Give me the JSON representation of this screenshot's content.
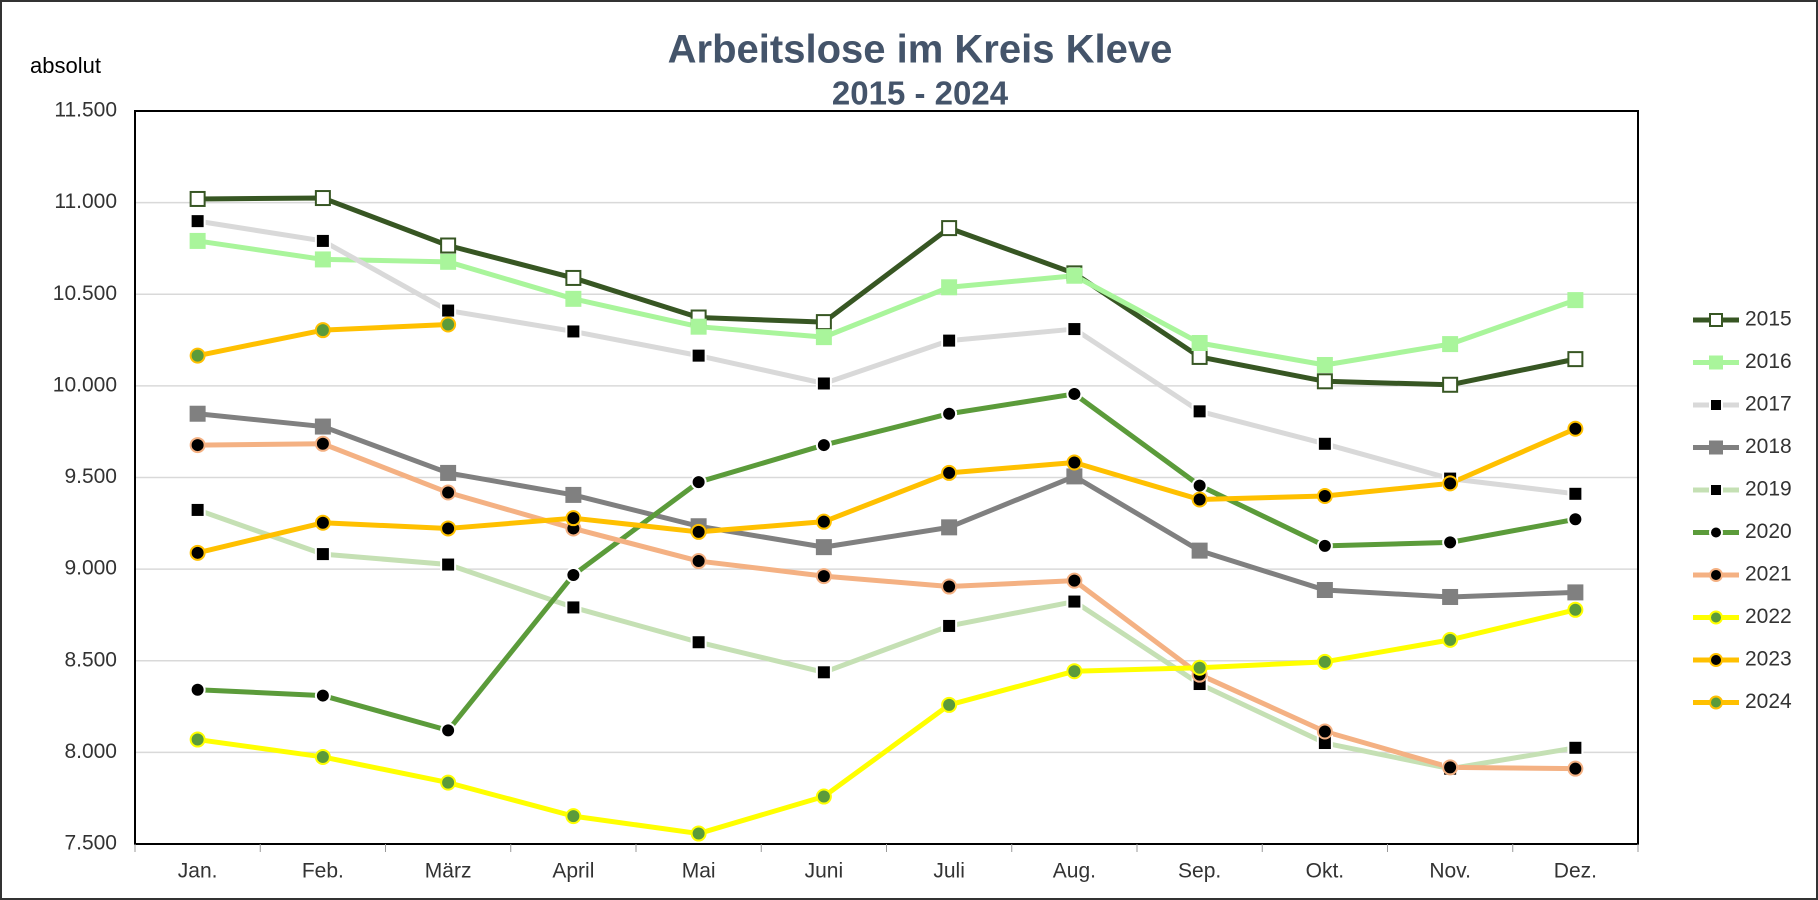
{
  "chart_data": {
    "type": "line",
    "title": "Arbeitslose im Kreis Kleve",
    "subtitle": "2015 - 2024",
    "y_label": "absolut",
    "categories": [
      "Jan.",
      "Feb.",
      "März",
      "April",
      "Mai",
      "Juni",
      "Juli",
      "Aug.",
      "Sep.",
      "Okt.",
      "Nov.",
      "Dez."
    ],
    "ylim": [
      7500,
      11500
    ],
    "yticks": [
      {
        "value": 7500,
        "label": "7.500"
      },
      {
        "value": 8000,
        "label": "8.000"
      },
      {
        "value": 8500,
        "label": "8.500"
      },
      {
        "value": 9000,
        "label": "9.000"
      },
      {
        "value": 9500,
        "label": "9.500"
      },
      {
        "value": 10000,
        "label": "10.000"
      },
      {
        "value": 10500,
        "label": "10.500"
      },
      {
        "value": 11000,
        "label": "11.000"
      },
      {
        "value": 11500,
        "label": "11.500"
      }
    ],
    "grid": true,
    "legend": "right",
    "series": [
      {
        "name": "2015",
        "color": "#375623",
        "marker": "square",
        "marker_fill": "#ffffff",
        "marker_stroke": "#375623",
        "values": [
          11020,
          11025,
          10766,
          10589,
          10373,
          10348,
          10861,
          10614,
          10158,
          10025,
          10006,
          10146
        ]
      },
      {
        "name": "2016",
        "color": "#a9f59b",
        "marker": "square",
        "marker_fill": "#a9f59b",
        "marker_stroke": "#a9f59b",
        "values": [
          10791,
          10690,
          10677,
          10475,
          10323,
          10266,
          10538,
          10601,
          10234,
          10114,
          10228,
          10468
        ]
      },
      {
        "name": "2017",
        "color": "#d9d9d9",
        "marker": "square",
        "marker_fill": "#000000",
        "marker_stroke": "#ffffff",
        "values": [
          10899,
          10791,
          10411,
          10297,
          10165,
          10013,
          10247,
          10310,
          9861,
          9684,
          9494,
          9411
        ]
      },
      {
        "name": "2018",
        "color": "#808080",
        "marker": "square",
        "marker_fill": "#808080",
        "marker_stroke": "#808080",
        "values": [
          9848,
          9778,
          9525,
          9405,
          9234,
          9120,
          9228,
          9506,
          9101,
          8886,
          8848,
          8873
        ]
      },
      {
        "name": "2019",
        "color": "#c5e0b4",
        "marker": "square",
        "marker_fill": "#000000",
        "marker_stroke": "#ffffff",
        "values": [
          9323,
          9082,
          9025,
          8791,
          8601,
          8437,
          8690,
          8823,
          8373,
          8051,
          7911,
          8025
        ]
      },
      {
        "name": "2020",
        "color": "#5b9b3a",
        "marker": "circle",
        "marker_fill": "#000000",
        "marker_stroke": "#ffffff",
        "values": [
          8342,
          8310,
          8120,
          8968,
          9475,
          9677,
          9848,
          9956,
          9456,
          9127,
          9146,
          9272
        ]
      },
      {
        "name": "2021",
        "color": "#f4b183",
        "marker": "circle",
        "marker_fill": "#000000",
        "marker_stroke": "#f4b183",
        "values": [
          9677,
          9684,
          9418,
          9222,
          9044,
          8962,
          8905,
          8937,
          8424,
          8114,
          7918,
          7911
        ]
      },
      {
        "name": "2022",
        "color": "#ffff00",
        "marker": "circle",
        "marker_fill": "#5b9b3a",
        "marker_stroke": "#ffff00",
        "values": [
          8070,
          7975,
          7835,
          7652,
          7557,
          7759,
          8259,
          8443,
          8462,
          8494,
          8614,
          8778
        ]
      },
      {
        "name": "2023",
        "color": "#ffc000",
        "marker": "circle",
        "marker_fill": "#000000",
        "marker_stroke": "#ffc000",
        "values": [
          9089,
          9253,
          9222,
          9278,
          9203,
          9259,
          9525,
          9582,
          9380,
          9399,
          9468,
          9766
        ]
      },
      {
        "name": "2024",
        "color": "#ffc000",
        "marker": "circle",
        "marker_fill": "#5b9b3a",
        "marker_stroke": "#ffc000",
        "values": [
          10165,
          10304,
          10335,
          null,
          null,
          null,
          null,
          null,
          null,
          null,
          null,
          null
        ]
      }
    ]
  }
}
